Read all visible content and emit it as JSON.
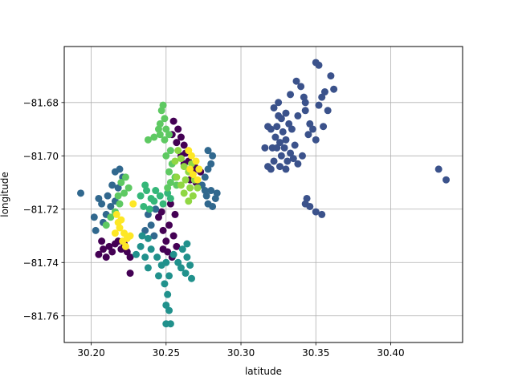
{
  "chart_data": {
    "type": "scatter",
    "title": "",
    "xlabel": "latitude",
    "ylabel": "longitude",
    "xlim": [
      30.182,
      30.448
    ],
    "ylim": [
      -81.77,
      -81.659
    ],
    "xticks": [
      30.2,
      30.25,
      30.3,
      30.35,
      30.4
    ],
    "xtick_labels": [
      "30.20",
      "30.25",
      "30.30",
      "30.35",
      "30.40"
    ],
    "yticks": [
      -81.68,
      -81.7,
      -81.72,
      -81.74,
      -81.76
    ],
    "ytick_labels": [
      "−81.68",
      "−81.70",
      "−81.72",
      "−81.74",
      "−81.76"
    ],
    "grid": true,
    "legend": "none",
    "colors": {
      "c0": "#440154",
      "c1": "#3b528b",
      "c2": "#31688e",
      "c3": "#21918c",
      "c4": "#35b779",
      "c5": "#5ec962",
      "c6": "#90d743",
      "c7": "#fde725"
    },
    "clusters": [
      {
        "color": "c1",
        "points": [
          [
            30.325,
            -81.68
          ],
          [
            30.322,
            -81.682
          ],
          [
            30.33,
            -81.684
          ],
          [
            30.327,
            -81.686
          ],
          [
            30.324,
            -81.689
          ],
          [
            30.32,
            -81.69
          ],
          [
            30.328,
            -81.691
          ],
          [
            30.332,
            -81.688
          ],
          [
            30.33,
            -81.694
          ],
          [
            30.326,
            -81.695
          ],
          [
            30.323,
            -81.693
          ],
          [
            30.321,
            -81.697
          ],
          [
            30.329,
            -81.697
          ],
          [
            30.333,
            -81.699
          ],
          [
            30.331,
            -81.702
          ],
          [
            30.327,
            -81.7
          ],
          [
            30.335,
            -81.701
          ],
          [
            30.338,
            -81.703
          ],
          [
            30.33,
            -81.705
          ],
          [
            30.326,
            -81.704
          ],
          [
            30.318,
            -81.704
          ],
          [
            30.32,
            -81.705
          ],
          [
            30.322,
            -81.702
          ],
          [
            30.338,
            -81.685
          ],
          [
            30.333,
            -81.677
          ],
          [
            30.337,
            -81.672
          ],
          [
            30.34,
            -81.674
          ],
          [
            30.343,
            -81.68
          ],
          [
            30.346,
            -81.688
          ],
          [
            30.348,
            -81.69
          ],
          [
            30.345,
            -81.692
          ],
          [
            30.35,
            -81.694
          ],
          [
            30.343,
            -81.683
          ],
          [
            30.352,
            -81.681
          ],
          [
            30.354,
            -81.678
          ],
          [
            30.356,
            -81.676
          ],
          [
            30.358,
            -81.683
          ],
          [
            30.362,
            -81.675
          ],
          [
            30.36,
            -81.67
          ],
          [
            30.35,
            -81.665
          ],
          [
            30.352,
            -81.666
          ],
          [
            30.355,
            -81.689
          ],
          [
            30.341,
            -81.7
          ],
          [
            30.325,
            -81.685
          ],
          [
            30.342,
            -81.678
          ],
          [
            30.343,
            -81.718
          ],
          [
            30.346,
            -81.719
          ],
          [
            30.344,
            -81.716
          ],
          [
            30.35,
            -81.721
          ],
          [
            30.354,
            -81.722
          ],
          [
            30.432,
            -81.705
          ],
          [
            30.437,
            -81.709
          ],
          [
            30.316,
            -81.697
          ],
          [
            30.324,
            -81.697
          ],
          [
            30.334,
            -81.69
          ],
          [
            30.318,
            -81.689
          ],
          [
            30.336,
            -81.696
          ]
        ]
      },
      {
        "color": "c0",
        "points": [
          [
            30.255,
            -81.687
          ],
          [
            30.258,
            -81.69
          ],
          [
            30.26,
            -81.693
          ],
          [
            30.262,
            -81.696
          ],
          [
            30.257,
            -81.695
          ],
          [
            30.263,
            -81.699
          ],
          [
            30.26,
            -81.7
          ],
          [
            30.254,
            -81.692
          ],
          [
            30.265,
            -81.702
          ],
          [
            30.268,
            -81.706
          ],
          [
            30.266,
            -81.709
          ],
          [
            30.262,
            -81.703
          ],
          [
            30.27,
            -81.71
          ],
          [
            30.273,
            -81.706
          ],
          [
            30.269,
            -81.704
          ],
          [
            30.205,
            -81.737
          ],
          [
            30.208,
            -81.735
          ],
          [
            30.212,
            -81.734
          ],
          [
            30.216,
            -81.733
          ],
          [
            30.22,
            -81.735
          ],
          [
            30.224,
            -81.736
          ],
          [
            30.21,
            -81.738
          ],
          [
            30.214,
            -81.736
          ],
          [
            30.218,
            -81.732
          ],
          [
            30.222,
            -81.733
          ],
          [
            30.226,
            -81.738
          ],
          [
            30.226,
            -81.744
          ],
          [
            30.207,
            -81.732
          ],
          [
            30.245,
            -81.723
          ],
          [
            30.248,
            -81.728
          ],
          [
            30.25,
            -81.732
          ],
          [
            30.252,
            -81.726
          ],
          [
            30.255,
            -81.73
          ],
          [
            30.256,
            -81.722
          ],
          [
            30.253,
            -81.718
          ],
          [
            30.248,
            -81.735
          ],
          [
            30.257,
            -81.734
          ],
          [
            30.251,
            -81.736
          ],
          [
            30.254,
            -81.738
          ],
          [
            30.247,
            -81.721
          ]
        ]
      },
      {
        "color": "c2",
        "points": [
          [
            30.211,
            -81.715
          ],
          [
            30.214,
            -81.711
          ],
          [
            30.216,
            -81.706
          ],
          [
            30.219,
            -81.705
          ],
          [
            30.221,
            -81.708
          ],
          [
            30.218,
            -81.712
          ],
          [
            30.216,
            -81.717
          ],
          [
            30.213,
            -81.719
          ],
          [
            30.21,
            -81.722
          ],
          [
            30.207,
            -81.718
          ],
          [
            30.205,
            -81.716
          ],
          [
            30.208,
            -81.725
          ],
          [
            30.203,
            -81.728
          ],
          [
            30.202,
            -81.723
          ],
          [
            30.193,
            -81.714
          ],
          [
            30.278,
            -81.698
          ],
          [
            30.281,
            -81.7
          ],
          [
            30.278,
            -81.705
          ],
          [
            30.28,
            -81.703
          ],
          [
            30.276,
            -81.708
          ],
          [
            30.274,
            -81.711
          ],
          [
            30.277,
            -81.715
          ],
          [
            30.28,
            -81.713
          ],
          [
            30.283,
            -81.716
          ],
          [
            30.281,
            -81.719
          ],
          [
            30.278,
            -81.718
          ],
          [
            30.276,
            -81.713
          ],
          [
            30.284,
            -81.714
          ],
          [
            30.24,
            -81.726
          ],
          [
            30.242,
            -81.73
          ],
          [
            30.238,
            -81.722
          ],
          [
            30.243,
            -81.72
          ],
          [
            30.236,
            -81.728
          ]
        ]
      },
      {
        "color": "c3",
        "points": [
          [
            30.24,
            -81.735
          ],
          [
            30.244,
            -81.738
          ],
          [
            30.247,
            -81.741
          ],
          [
            30.25,
            -81.74
          ],
          [
            30.252,
            -81.745
          ],
          [
            30.249,
            -81.748
          ],
          [
            30.251,
            -81.752
          ],
          [
            30.25,
            -81.756
          ],
          [
            30.252,
            -81.758
          ],
          [
            30.25,
            -81.763
          ],
          [
            30.253,
            -81.763
          ],
          [
            30.236,
            -81.738
          ],
          [
            30.233,
            -81.734
          ],
          [
            30.238,
            -81.742
          ],
          [
            30.255,
            -81.737
          ],
          [
            30.258,
            -81.74
          ],
          [
            30.261,
            -81.735
          ],
          [
            30.264,
            -81.738
          ],
          [
            30.266,
            -81.741
          ],
          [
            30.263,
            -81.744
          ],
          [
            30.26,
            -81.742
          ],
          [
            30.267,
            -81.746
          ],
          [
            30.264,
            -81.733
          ],
          [
            30.245,
            -81.745
          ],
          [
            30.234,
            -81.73
          ],
          [
            30.238,
            -81.731
          ],
          [
            30.23,
            -81.737
          ]
        ]
      },
      {
        "color": "c4",
        "points": [
          [
            30.233,
            -81.715
          ],
          [
            30.237,
            -81.713
          ],
          [
            30.24,
            -81.716
          ],
          [
            30.243,
            -81.713
          ],
          [
            30.246,
            -81.715
          ],
          [
            30.248,
            -81.718
          ],
          [
            30.251,
            -81.714
          ],
          [
            30.253,
            -81.716
          ],
          [
            30.235,
            -81.719
          ],
          [
            30.239,
            -81.72
          ],
          [
            30.242,
            -81.717
          ],
          [
            30.236,
            -81.711
          ]
        ]
      },
      {
        "color": "c5",
        "points": [
          [
            30.247,
            -81.683
          ],
          [
            30.249,
            -81.686
          ],
          [
            30.246,
            -81.688
          ],
          [
            30.25,
            -81.69
          ],
          [
            30.252,
            -81.692
          ],
          [
            30.249,
            -81.694
          ],
          [
            30.246,
            -81.692
          ],
          [
            30.242,
            -81.693
          ],
          [
            30.238,
            -81.694
          ],
          [
            30.253,
            -81.698
          ],
          [
            30.25,
            -81.7
          ],
          [
            30.254,
            -81.703
          ],
          [
            30.252,
            -81.706
          ],
          [
            30.256,
            -81.708
          ],
          [
            30.253,
            -81.71
          ],
          [
            30.251,
            -81.712
          ],
          [
            30.223,
            -81.708
          ],
          [
            30.225,
            -81.712
          ],
          [
            30.222,
            -81.714
          ],
          [
            30.22,
            -81.71
          ],
          [
            30.218,
            -81.715
          ],
          [
            30.219,
            -81.718
          ],
          [
            30.216,
            -81.721
          ],
          [
            30.213,
            -81.723
          ],
          [
            30.21,
            -81.726
          ],
          [
            30.257,
            -81.711
          ],
          [
            30.248,
            -81.681
          ],
          [
            30.245,
            -81.69
          ]
        ]
      },
      {
        "color": "c6",
        "points": [
          [
            30.258,
            -81.698
          ],
          [
            30.26,
            -81.701
          ],
          [
            30.262,
            -81.704
          ],
          [
            30.265,
            -81.706
          ],
          [
            30.263,
            -81.709
          ],
          [
            30.266,
            -81.712
          ],
          [
            30.268,
            -81.715
          ],
          [
            30.265,
            -81.717
          ],
          [
            30.262,
            -81.714
          ],
          [
            30.26,
            -81.711
          ],
          [
            30.257,
            -81.708
          ],
          [
            30.269,
            -81.709
          ],
          [
            30.271,
            -81.712
          ],
          [
            30.267,
            -81.703
          ],
          [
            30.256,
            -81.702
          ]
        ]
      },
      {
        "color": "c7",
        "points": [
          [
            30.265,
            -81.698
          ],
          [
            30.267,
            -81.7
          ],
          [
            30.27,
            -81.702
          ],
          [
            30.272,
            -81.705
          ],
          [
            30.268,
            -81.707
          ],
          [
            30.271,
            -81.709
          ],
          [
            30.266,
            -81.705
          ],
          [
            30.217,
            -81.722
          ],
          [
            30.22,
            -81.724
          ],
          [
            30.219,
            -81.727
          ],
          [
            30.222,
            -81.729
          ],
          [
            30.221,
            -81.732
          ],
          [
            30.224,
            -81.731
          ],
          [
            30.218,
            -81.725
          ],
          [
            30.216,
            -81.729
          ],
          [
            30.228,
            -81.718
          ],
          [
            30.223,
            -81.734
          ],
          [
            30.226,
            -81.73
          ]
        ]
      }
    ]
  }
}
